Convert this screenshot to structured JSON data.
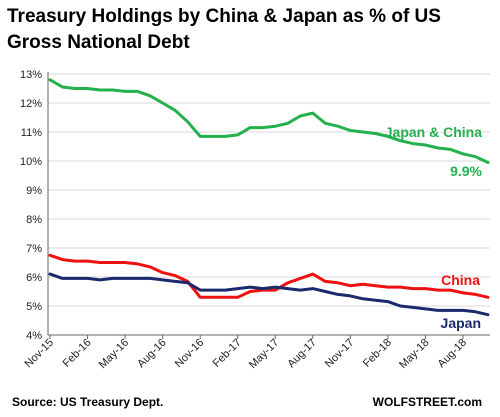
{
  "chart_data": {
    "type": "line",
    "title": "Treasury Holdings by China & Japan as % of US Gross National Debt",
    "xlabel": "",
    "ylabel": "",
    "x_tick_labels": [
      "Nov-15",
      "Feb-16",
      "May-16",
      "Aug-16",
      "Nov-16",
      "Feb-17",
      "May-17",
      "Aug-17",
      "Nov-17",
      "Feb-18",
      "May-18",
      "Aug-18"
    ],
    "y_tick_labels": [
      "4%",
      "5%",
      "6%",
      "7%",
      "8%",
      "9%",
      "10%",
      "11%",
      "12%",
      "13%"
    ],
    "ylim": [
      4,
      13
    ],
    "grid": true,
    "x": [
      "Nov-15",
      "Dec-15",
      "Jan-16",
      "Feb-16",
      "Mar-16",
      "Apr-16",
      "May-16",
      "Jun-16",
      "Jul-16",
      "Aug-16",
      "Sep-16",
      "Oct-16",
      "Nov-16",
      "Dec-16",
      "Jan-17",
      "Feb-17",
      "Mar-17",
      "Apr-17",
      "May-17",
      "Jun-17",
      "Jul-17",
      "Aug-17",
      "Sep-17",
      "Oct-17",
      "Nov-17",
      "Dec-17",
      "Jan-18",
      "Feb-18",
      "Mar-18",
      "Apr-18",
      "May-18",
      "Jun-18",
      "Jul-18",
      "Aug-18",
      "Sep-18",
      "Oct-18"
    ],
    "series": [
      {
        "name": "Japan & China",
        "color": "#22b14c",
        "values": [
          12.8,
          12.55,
          12.5,
          12.5,
          12.45,
          12.45,
          12.4,
          12.4,
          12.25,
          12.0,
          11.75,
          11.35,
          10.85,
          10.85,
          10.85,
          10.9,
          11.15,
          11.15,
          11.2,
          11.3,
          11.55,
          11.65,
          11.3,
          11.2,
          11.05,
          11.0,
          10.95,
          10.85,
          10.7,
          10.6,
          10.55,
          10.45,
          10.4,
          10.25,
          10.15,
          9.95
        ]
      },
      {
        "name": "China",
        "color": "#ee1111",
        "values": [
          6.75,
          6.6,
          6.55,
          6.55,
          6.5,
          6.5,
          6.5,
          6.45,
          6.35,
          6.15,
          6.05,
          5.85,
          5.3,
          5.3,
          5.3,
          5.3,
          5.5,
          5.55,
          5.55,
          5.8,
          5.95,
          6.1,
          5.85,
          5.8,
          5.7,
          5.75,
          5.7,
          5.65,
          5.65,
          5.6,
          5.6,
          5.55,
          5.55,
          5.45,
          5.4,
          5.3
        ]
      },
      {
        "name": "Japan",
        "color": "#1a2a6c",
        "values": [
          6.1,
          5.95,
          5.95,
          5.95,
          5.9,
          5.95,
          5.95,
          5.95,
          5.95,
          5.9,
          5.85,
          5.8,
          5.55,
          5.55,
          5.55,
          5.6,
          5.65,
          5.6,
          5.65,
          5.6,
          5.55,
          5.6,
          5.5,
          5.4,
          5.35,
          5.25,
          5.2,
          5.15,
          5.0,
          4.95,
          4.9,
          4.85,
          4.85,
          4.85,
          4.8,
          4.7
        ]
      }
    ],
    "annotations": {
      "japan_china_label": "Japan & China",
      "last_value_label": "9.9%",
      "china_label": "China",
      "japan_label": "Japan"
    }
  },
  "footer": {
    "source": "Source: US Treasury Dept.",
    "credit": "WOLFSTREET.com"
  }
}
